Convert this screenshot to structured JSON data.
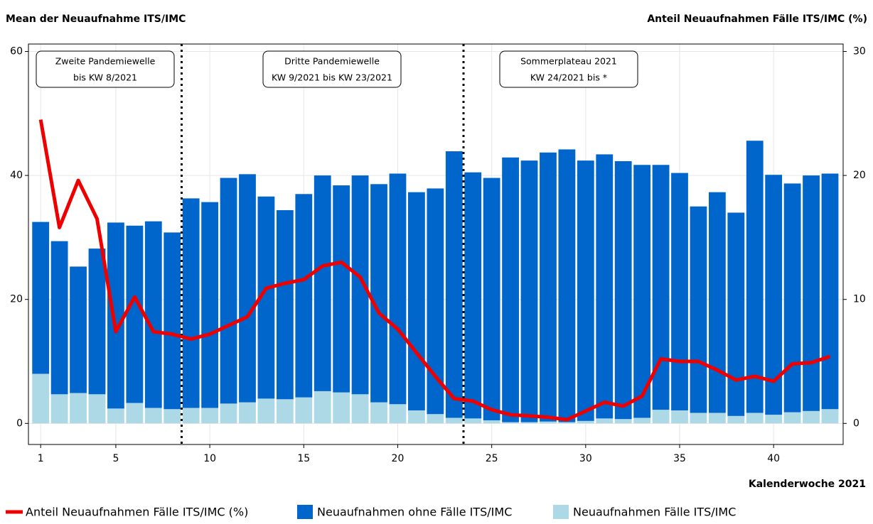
{
  "chart_data": {
    "type": "bar",
    "stacked": true,
    "y_label": "Mean der Neuaufnahme ITS/IMC",
    "y2_label": "Anteil Neuaufnahmen Fälle ITS/IMC (%)",
    "x_label": "Kalenderwoche 2021",
    "x": [
      1,
      2,
      3,
      4,
      5,
      6,
      7,
      8,
      9,
      10,
      11,
      12,
      13,
      14,
      15,
      16,
      17,
      18,
      19,
      20,
      21,
      22,
      23,
      24,
      25,
      26,
      27,
      28,
      29,
      30,
      31,
      32,
      33,
      34,
      35,
      36,
      37,
      38,
      39,
      40,
      41,
      42,
      43
    ],
    "xlim": [
      0.35,
      43.7
    ],
    "xticks": [
      1,
      5,
      10,
      15,
      20,
      25,
      30,
      35,
      40
    ],
    "ylim": [
      -3.4,
      61.2
    ],
    "yticks": [
      0,
      20,
      40,
      60
    ],
    "y2lim": [
      -1.7,
      30.6
    ],
    "y2ticks": [
      0,
      10,
      20,
      30
    ],
    "grid": true,
    "vlines": [
      8.5,
      23.5
    ],
    "annotations": [
      [
        "Zweite Pandemiewelle",
        "bis KW 8/2021"
      ],
      [
        "Dritte Pandemiewelle",
        "KW 9/2021 bis KW 23/2021"
      ],
      [
        "Sommerplateau 2021",
        "KW 24/2021 bis *"
      ]
    ],
    "series": [
      {
        "name": "Anteil Neuaufnahmen Fälle ITS/IMC (%)",
        "type": "line",
        "axis": "y2",
        "color": "#ee0000",
        "values": [
          24.5,
          15.8,
          19.6,
          16.5,
          7.4,
          10.2,
          7.4,
          7.2,
          6.8,
          7.2,
          7.9,
          8.6,
          10.9,
          11.3,
          11.6,
          12.7,
          13.0,
          11.8,
          8.9,
          7.6,
          5.7,
          3.8,
          2.0,
          1.8,
          1.1,
          0.7,
          0.6,
          0.5,
          0.3,
          1.0,
          1.7,
          1.4,
          2.2,
          5.2,
          5.0,
          5.0,
          4.3,
          3.5,
          3.8,
          3.4,
          4.8,
          4.9,
          5.4
        ]
      },
      {
        "name": "Neuaufnahmen ohne Fälle ITS/IMC",
        "type": "bar",
        "color": "#0066cc",
        "values": [
          24.5,
          24.7,
          20.4,
          23.5,
          30.0,
          28.6,
          30.1,
          28.5,
          33.8,
          33.2,
          36.4,
          36.8,
          32.6,
          30.5,
          32.8,
          34.8,
          33.4,
          35.3,
          35.2,
          37.2,
          35.2,
          36.4,
          43.0,
          39.7,
          39.1,
          42.7,
          42.2,
          43.4,
          44.0,
          42.0,
          42.6,
          41.6,
          40.8,
          39.5,
          38.3,
          33.3,
          35.6,
          32.8,
          43.9,
          38.7,
          36.9,
          38.0,
          38.0
        ]
      },
      {
        "name": "Neuaufnahmen Fälle ITS/IMC",
        "type": "bar",
        "color": "#add8e6",
        "values": [
          8.0,
          4.7,
          4.9,
          4.7,
          2.4,
          3.3,
          2.5,
          2.3,
          2.5,
          2.5,
          3.2,
          3.4,
          4.0,
          3.9,
          4.2,
          5.2,
          5.0,
          4.7,
          3.4,
          3.1,
          2.1,
          1.5,
          0.9,
          0.8,
          0.5,
          0.2,
          0.2,
          0.3,
          0.2,
          0.4,
          0.8,
          0.7,
          0.9,
          2.2,
          2.1,
          1.7,
          1.7,
          1.2,
          1.7,
          1.4,
          1.8,
          2.0,
          2.3
        ]
      }
    ]
  }
}
